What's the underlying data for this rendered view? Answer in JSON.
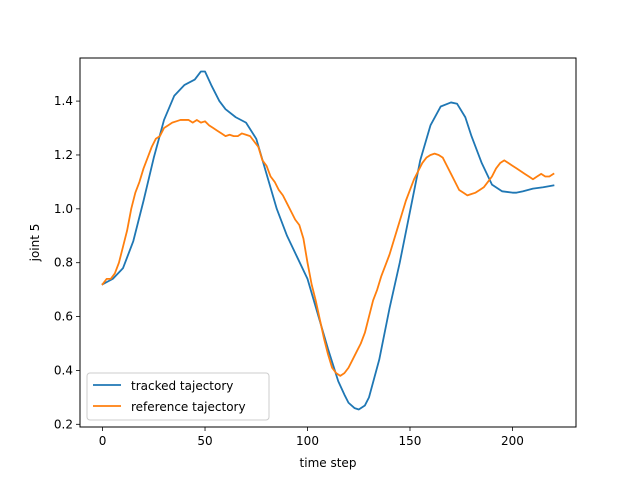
{
  "colors": {
    "tracked": "#1f77b4",
    "reference": "#ff7f0e"
  },
  "chart_data": {
    "type": "line",
    "title": "",
    "xlabel": "time step",
    "ylabel": "joint 5",
    "xlim": [
      -11,
      231
    ],
    "ylim": [
      0.19,
      1.56
    ],
    "xticks": [
      0,
      50,
      100,
      150,
      200
    ],
    "xtick_labels": [
      "0",
      "50",
      "100",
      "150",
      "200"
    ],
    "yticks": [
      0.2,
      0.4,
      0.6,
      0.8,
      1.0,
      1.2,
      1.4
    ],
    "ytick_labels": [
      "0.2",
      "0.4",
      "0.6",
      "0.8",
      "1.0",
      "1.2",
      "1.4"
    ],
    "grid": false,
    "legend_position": "lower-left",
    "series": [
      {
        "name": "tracked tajectory",
        "color": "#1f77b4",
        "x": [
          0,
          5,
          10,
          15,
          20,
          25,
          30,
          35,
          40,
          45,
          48,
          50,
          53,
          57,
          60,
          65,
          70,
          75,
          80,
          85,
          90,
          95,
          100,
          105,
          110,
          115,
          118,
          120,
          123,
          125,
          128,
          130,
          135,
          140,
          145,
          150,
          155,
          160,
          165,
          170,
          173,
          177,
          180,
          185,
          190,
          195,
          200,
          202,
          205,
          210,
          215,
          220
        ],
        "y": [
          0.72,
          0.74,
          0.78,
          0.88,
          1.03,
          1.19,
          1.33,
          1.42,
          1.46,
          1.48,
          1.51,
          1.51,
          1.46,
          1.4,
          1.37,
          1.34,
          1.32,
          1.26,
          1.13,
          1.0,
          0.9,
          0.82,
          0.74,
          0.61,
          0.48,
          0.36,
          0.31,
          0.28,
          0.26,
          0.255,
          0.27,
          0.3,
          0.44,
          0.63,
          0.8,
          0.99,
          1.18,
          1.31,
          1.38,
          1.395,
          1.39,
          1.34,
          1.27,
          1.17,
          1.09,
          1.065,
          1.06,
          1.06,
          1.065,
          1.075,
          1.08,
          1.087
        ]
      },
      {
        "name": "reference tajectory",
        "color": "#ff7f0e",
        "x": [
          0,
          2,
          4,
          6,
          8,
          10,
          12,
          14,
          16,
          18,
          20,
          22,
          24,
          26,
          28,
          30,
          32,
          34,
          36,
          38,
          40,
          42,
          44,
          46,
          48,
          50,
          52,
          54,
          56,
          58,
          60,
          62,
          64,
          66,
          68,
          70,
          72,
          74,
          76,
          78,
          80,
          82,
          84,
          86,
          88,
          90,
          92,
          94,
          96,
          98,
          100,
          102,
          104,
          106,
          108,
          110,
          112,
          114,
          116,
          118,
          120,
          122,
          124,
          126,
          128,
          130,
          132,
          134,
          136,
          138,
          140,
          142,
          144,
          146,
          148,
          150,
          152,
          154,
          156,
          158,
          160,
          162,
          164,
          166,
          168,
          170,
          172,
          174,
          176,
          178,
          180,
          182,
          184,
          186,
          188,
          190,
          192,
          194,
          196,
          198,
          200,
          202,
          204,
          206,
          208,
          210,
          212,
          214,
          216,
          218,
          220
        ],
        "y": [
          0.72,
          0.74,
          0.74,
          0.76,
          0.8,
          0.86,
          0.92,
          1.0,
          1.06,
          1.1,
          1.15,
          1.19,
          1.23,
          1.26,
          1.27,
          1.3,
          1.31,
          1.32,
          1.325,
          1.33,
          1.33,
          1.33,
          1.32,
          1.33,
          1.32,
          1.325,
          1.31,
          1.3,
          1.29,
          1.28,
          1.27,
          1.275,
          1.27,
          1.27,
          1.28,
          1.275,
          1.27,
          1.25,
          1.23,
          1.18,
          1.16,
          1.12,
          1.1,
          1.07,
          1.05,
          1.02,
          0.99,
          0.96,
          0.94,
          0.89,
          0.8,
          0.72,
          0.66,
          0.59,
          0.52,
          0.46,
          0.41,
          0.39,
          0.38,
          0.39,
          0.41,
          0.44,
          0.47,
          0.5,
          0.54,
          0.6,
          0.66,
          0.7,
          0.75,
          0.79,
          0.83,
          0.88,
          0.93,
          0.98,
          1.03,
          1.07,
          1.11,
          1.14,
          1.17,
          1.19,
          1.2,
          1.205,
          1.2,
          1.19,
          1.16,
          1.13,
          1.1,
          1.07,
          1.06,
          1.05,
          1.055,
          1.06,
          1.07,
          1.08,
          1.1,
          1.12,
          1.15,
          1.17,
          1.18,
          1.17,
          1.16,
          1.15,
          1.14,
          1.13,
          1.12,
          1.11,
          1.12,
          1.13,
          1.12,
          1.12,
          1.13
        ]
      }
    ]
  }
}
